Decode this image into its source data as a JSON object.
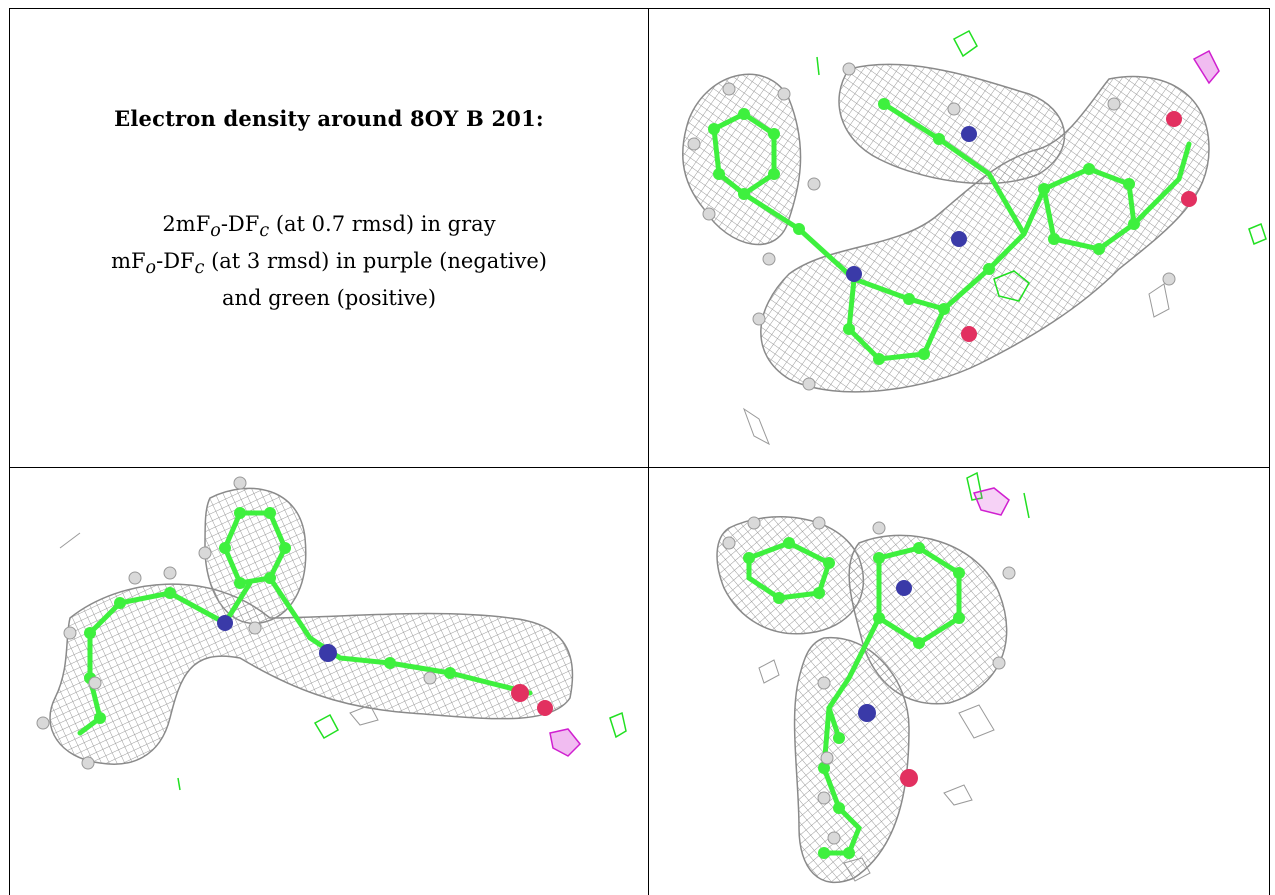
{
  "title": "Electron density around 8OY B 201:",
  "legend": {
    "line1": {
      "prefix": "2mF",
      "sub1": "o",
      "mid": "-DF",
      "sub2": "c",
      "suffix": " (at 0.7 rmsd) in gray"
    },
    "line2": {
      "prefix": "mF",
      "sub1": "o",
      "mid": "-DF",
      "sub2": "c",
      "suffix": " (at 3 rmsd) in purple (negative)"
    },
    "line3": "and green (positive)"
  },
  "colors": {
    "mesh": "#9a9a9a",
    "carbon": "#3ef03e",
    "nitrogen": "#3a3aa8",
    "oxygen": "#e23060",
    "hydrogen": "#d9d9d9",
    "positive": "#22e022",
    "negative": "#d020d0"
  },
  "panels": [
    "view-top-right",
    "view-bottom-left",
    "view-bottom-right"
  ]
}
